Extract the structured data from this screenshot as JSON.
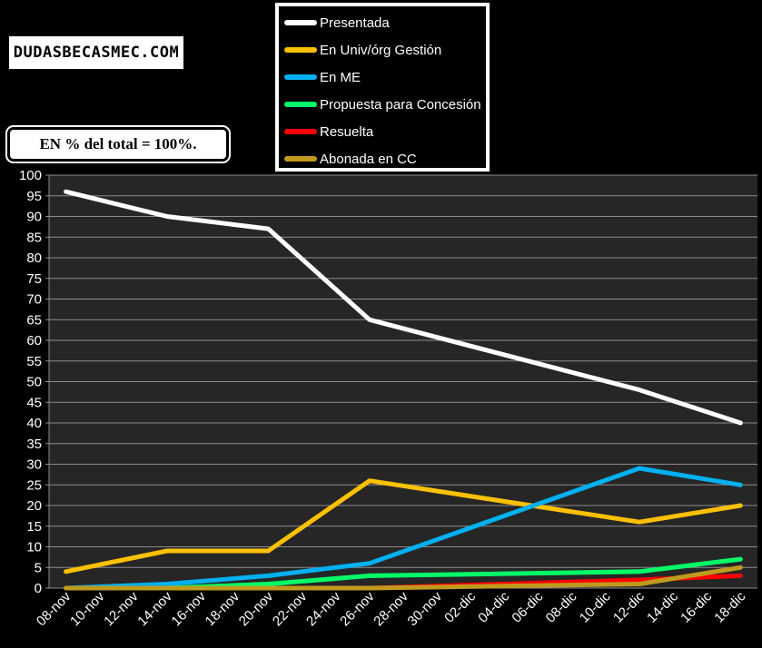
{
  "logo": {
    "text": "DUDASBECASMEC.COM"
  },
  "note": {
    "text": "EN % del total = 100%."
  },
  "chart_data": {
    "type": "line",
    "title": "",
    "xlabel": "",
    "ylabel": "",
    "ylim": [
      0,
      100
    ],
    "y_ticks": [
      0,
      5,
      10,
      15,
      20,
      25,
      30,
      35,
      40,
      45,
      50,
      55,
      60,
      65,
      70,
      75,
      80,
      85,
      90,
      95,
      100
    ],
    "grid": true,
    "legend_position": "top-center",
    "categories": [
      "08-nov",
      "10-nov",
      "12-nov",
      "14-nov",
      "16-nov",
      "18-nov",
      "20-nov",
      "22-nov",
      "24-nov",
      "26-nov",
      "28-nov",
      "30-nov",
      "02-dic",
      "04-dic",
      "06-dic",
      "08-dic",
      "10-dic",
      "12-dic",
      "14-dic",
      "16-dic",
      "18-dic"
    ],
    "series": [
      {
        "name": "Presentada",
        "color": "#ffffff",
        "points": [
          [
            0,
            96
          ],
          [
            3,
            90
          ],
          [
            6,
            87
          ],
          [
            9,
            65
          ],
          [
            17,
            48
          ],
          [
            20,
            40
          ]
        ]
      },
      {
        "name": "En Univ/órg Gestión",
        "color": "#ffc000",
        "points": [
          [
            0,
            4
          ],
          [
            3,
            9
          ],
          [
            6,
            9
          ],
          [
            9,
            26
          ],
          [
            17,
            16
          ],
          [
            20,
            20
          ]
        ]
      },
      {
        "name": "En ME",
        "color": "#00b0f0",
        "points": [
          [
            0,
            0
          ],
          [
            3,
            1
          ],
          [
            6,
            3
          ],
          [
            9,
            6
          ],
          [
            17,
            29
          ],
          [
            20,
            25
          ]
        ]
      },
      {
        "name": "Propuesta para  Concesión",
        "color": "#00ff66",
        "points": [
          [
            0,
            0
          ],
          [
            3,
            0
          ],
          [
            6,
            1
          ],
          [
            9,
            3
          ],
          [
            17,
            4
          ],
          [
            20,
            7
          ]
        ]
      },
      {
        "name": "Resuelta",
        "color": "#ff0000",
        "points": [
          [
            0,
            0
          ],
          [
            3,
            0
          ],
          [
            6,
            0
          ],
          [
            9,
            0
          ],
          [
            17,
            2
          ],
          [
            20,
            3
          ]
        ]
      },
      {
        "name": "Abonada en CC",
        "color": "#c09a1e",
        "points": [
          [
            0,
            0
          ],
          [
            3,
            0
          ],
          [
            6,
            0
          ],
          [
            9,
            0
          ],
          [
            17,
            1
          ],
          [
            20,
            5
          ]
        ]
      }
    ]
  }
}
